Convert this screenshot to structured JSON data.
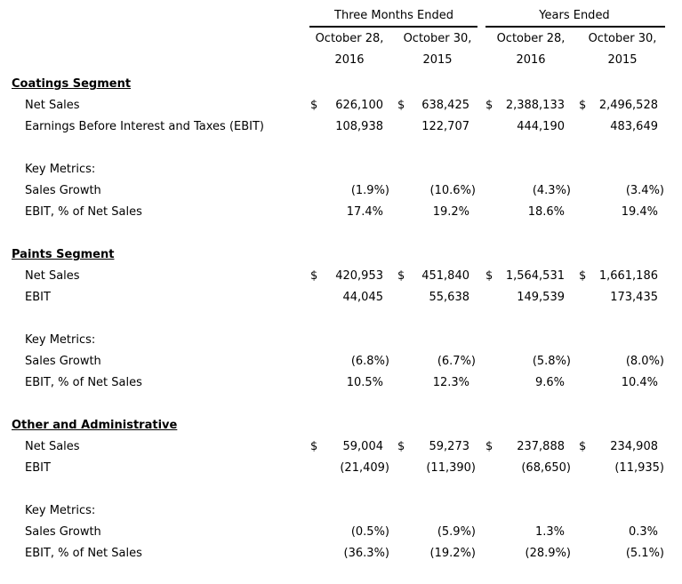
{
  "header": {
    "groups": [
      "Three Months Ended",
      "Years Ended"
    ],
    "columns": [
      [
        "October 28,",
        "2016"
      ],
      [
        "October 30,",
        "2015"
      ],
      [
        "October 28,",
        "2016"
      ],
      [
        "October 30,",
        "2015"
      ]
    ]
  },
  "sections": [
    {
      "title": "Coatings Segment",
      "rows": [
        {
          "label": "Net Sales",
          "cells": [
            {
              "symbol": "$",
              "amount": "626,100"
            },
            {
              "symbol": "$",
              "amount": "638,425"
            },
            {
              "symbol": "$",
              "amount": "2,388,133"
            },
            {
              "symbol": "$",
              "amount": "2,496,528"
            }
          ]
        },
        {
          "label": "Earnings Before Interest and Taxes (EBIT)",
          "cells": [
            "108,938",
            "122,707",
            "444,190",
            "483,649"
          ]
        }
      ],
      "metrics_title": "Key Metrics:",
      "metrics": [
        {
          "label": "Sales Growth",
          "cells": [
            "(1.9%)",
            "(10.6%)",
            "(4.3%)",
            "(3.4%)"
          ]
        },
        {
          "label": "EBIT, % of Net Sales",
          "cells": [
            "17.4%",
            "19.2%",
            "18.6%",
            "19.4%"
          ]
        }
      ]
    },
    {
      "title": "Paints Segment",
      "rows": [
        {
          "label": "Net Sales",
          "cells": [
            {
              "symbol": "$",
              "amount": "420,953"
            },
            {
              "symbol": "$",
              "amount": "451,840"
            },
            {
              "symbol": "$",
              "amount": "1,564,531"
            },
            {
              "symbol": "$",
              "amount": "1,661,186"
            }
          ]
        },
        {
          "label": "EBIT",
          "cells": [
            "44,045",
            "55,638",
            "149,539",
            "173,435"
          ]
        }
      ],
      "metrics_title": "Key Metrics:",
      "metrics": [
        {
          "label": "Sales Growth",
          "cells": [
            "(6.8%)",
            "(6.7%)",
            "(5.8%)",
            "(8.0%)"
          ]
        },
        {
          "label": "EBIT, % of Net Sales",
          "cells": [
            "10.5%",
            "12.3%",
            "9.6%",
            "10.4%"
          ]
        }
      ]
    },
    {
      "title": "Other and Administrative",
      "rows": [
        {
          "label": "Net Sales",
          "cells": [
            {
              "symbol": "$",
              "amount": "59,004"
            },
            {
              "symbol": "$",
              "amount": "59,273"
            },
            {
              "symbol": "$",
              "amount": "237,888"
            },
            {
              "symbol": "$",
              "amount": "234,908"
            }
          ]
        },
        {
          "label": "EBIT",
          "cells": [
            "(21,409)",
            "(11,390)",
            "(68,650)",
            "(11,935)"
          ]
        }
      ],
      "metrics_title": "Key Metrics:",
      "metrics": [
        {
          "label": "Sales Growth",
          "cells": [
            "(0.5%)",
            "(5.9%)",
            "1.3%",
            "0.3%"
          ]
        },
        {
          "label": "EBIT, % of Net Sales",
          "cells": [
            "(36.3%)",
            "(19.2%)",
            "(28.9%)",
            "(5.1%)"
          ]
        }
      ]
    }
  ]
}
